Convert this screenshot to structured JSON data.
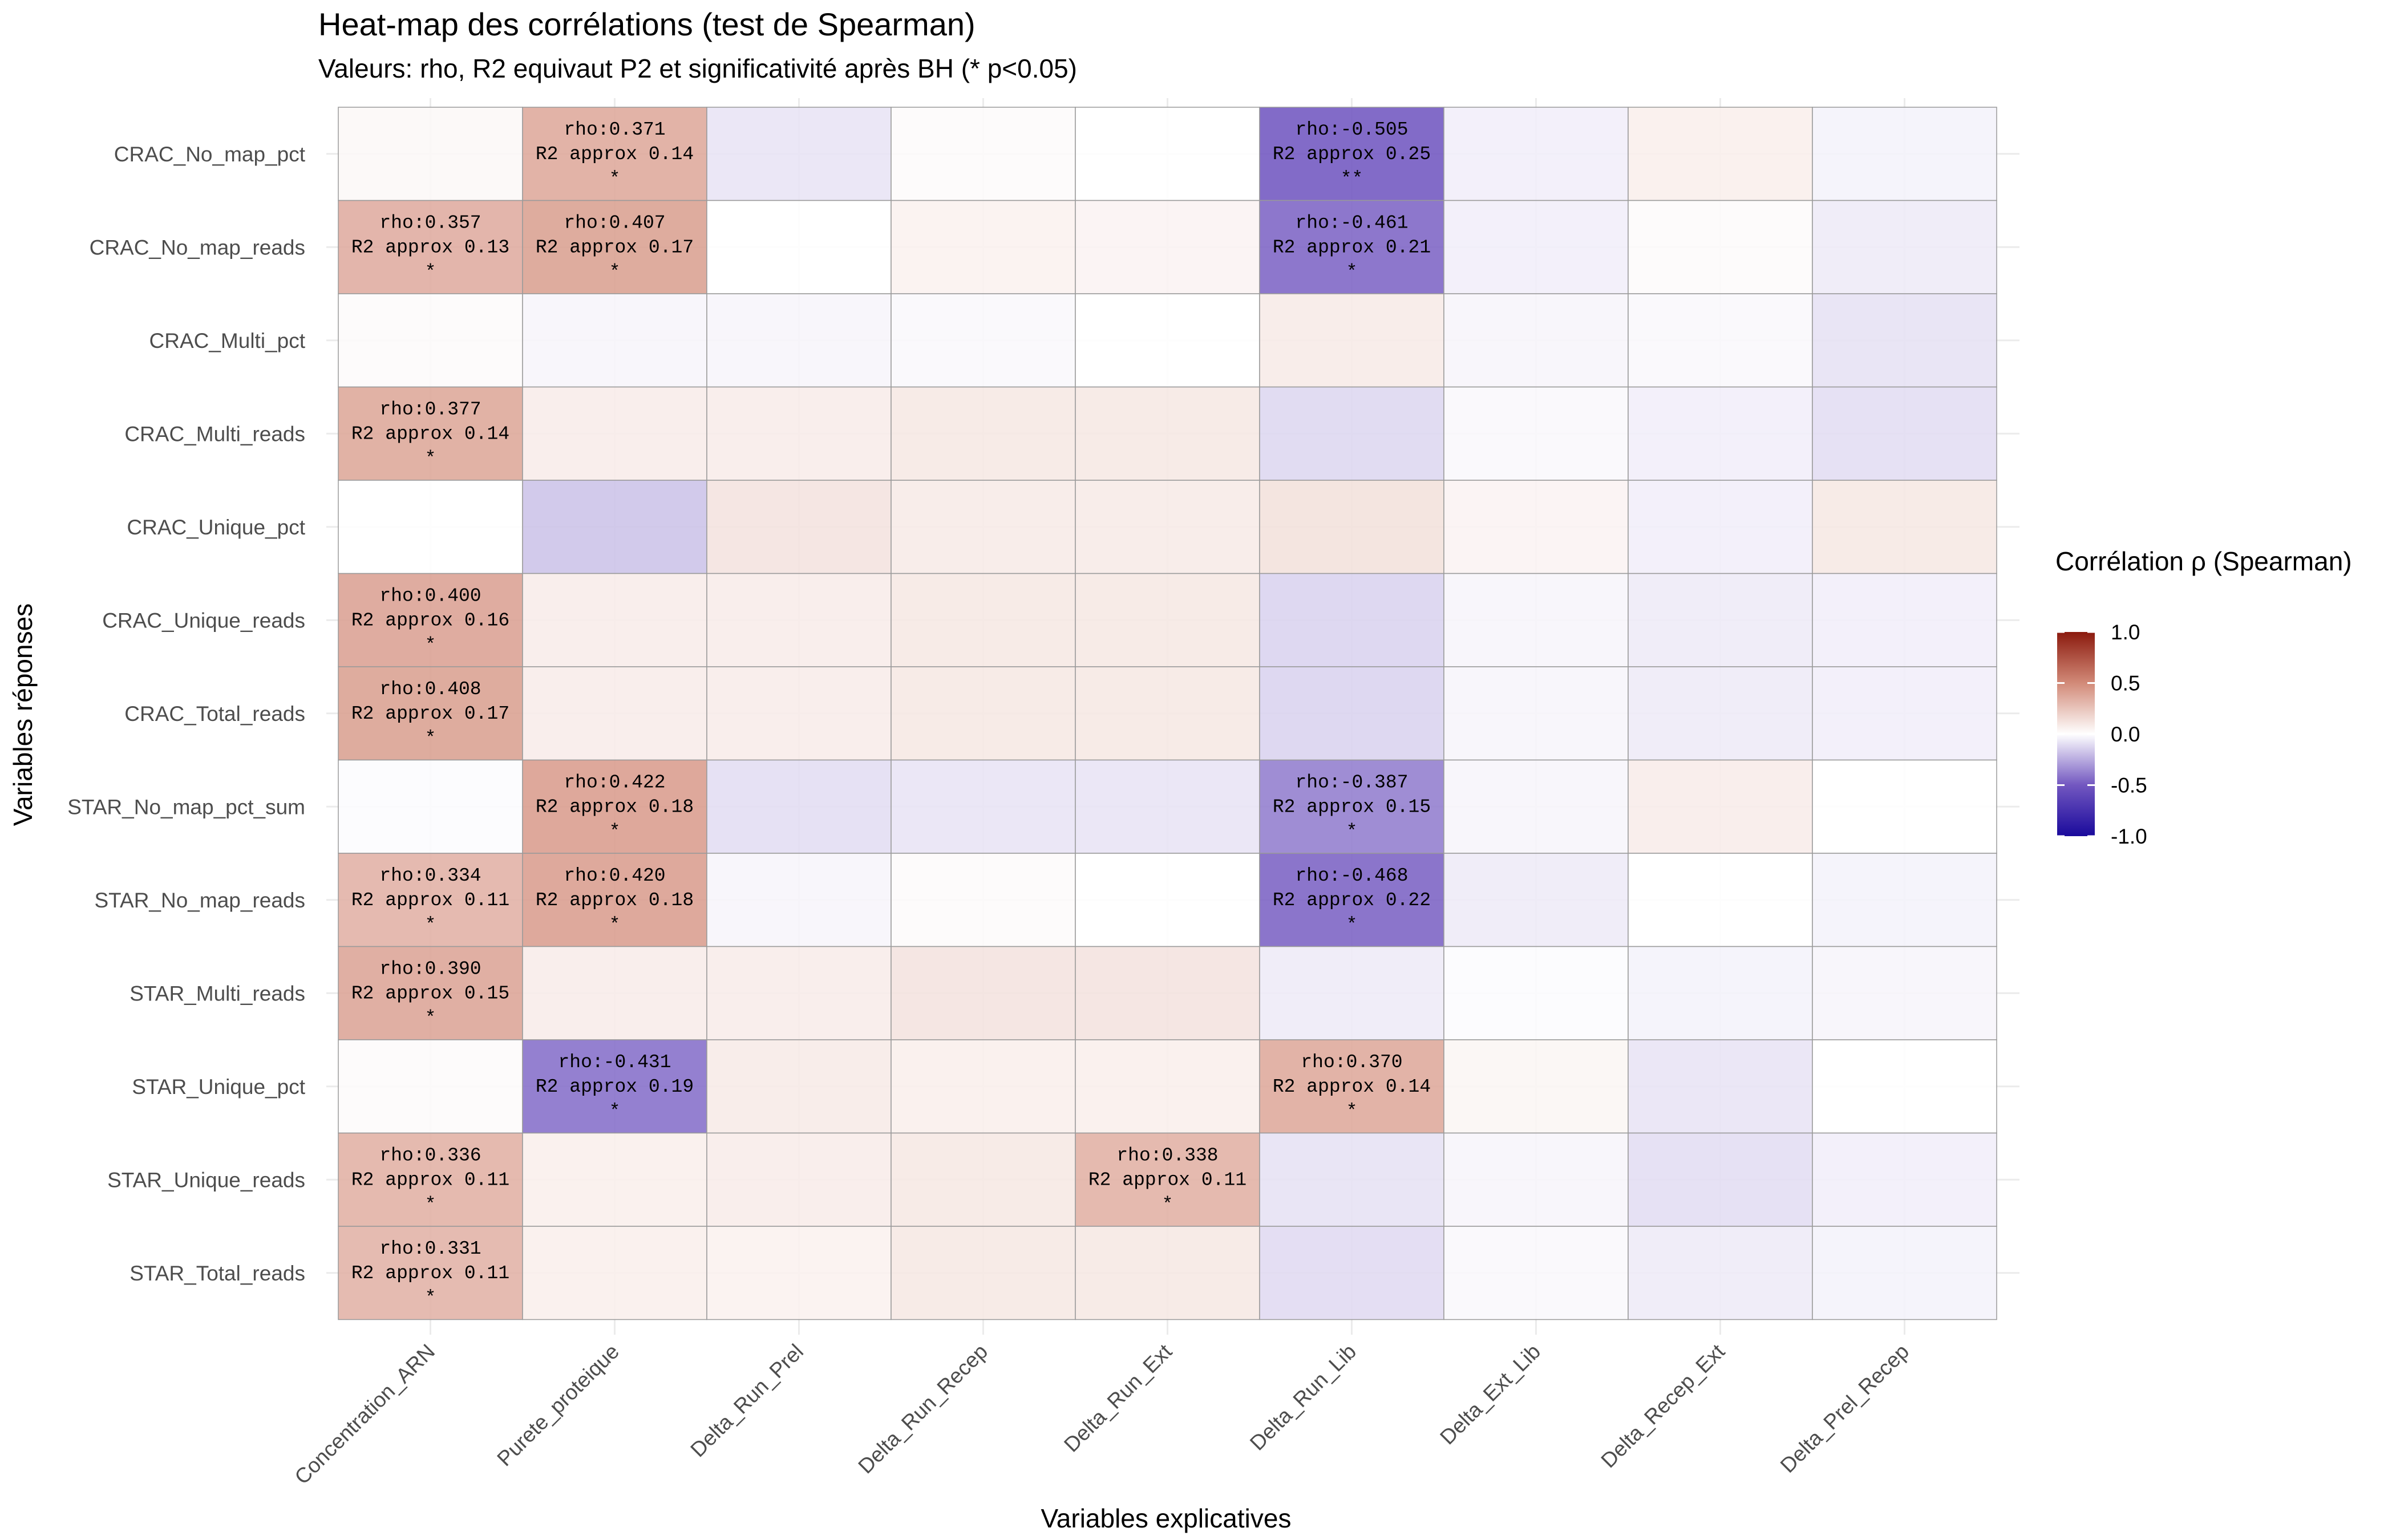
{
  "chart_data": {
    "type": "heatmap",
    "title": "Heat-map des corrélations (test de Spearman)",
    "subtitle": "Valeurs: rho, R2 equivaut P2 et significativité après BH (* p<0.05)",
    "xlabel": "Variables explicatives",
    "ylabel": "Variables réponses",
    "x_categories": [
      "Concentration_ARN",
      "Purete_proteique",
      "Delta_Run_Prel",
      "Delta_Run_Recep",
      "Delta_Run_Ext",
      "Delta_Run_Lib",
      "Delta_Ext_Lib",
      "Delta_Recep_Ext",
      "Delta_Prel_Recep"
    ],
    "y_categories": [
      "CRAC_No_map_pct",
      "CRAC_No_map_reads",
      "CRAC_Multi_pct",
      "CRAC_Multi_reads",
      "CRAC_Unique_pct",
      "CRAC_Unique_reads",
      "CRAC_Total_reads",
      "STAR_No_map_pct_sum",
      "STAR_No_map_reads",
      "STAR_Multi_reads",
      "STAR_Unique_pct",
      "STAR_Unique_reads",
      "STAR_Total_reads"
    ],
    "values": [
      [
        0.03,
        0.371,
        -0.08,
        0.02,
        0.0,
        -0.505,
        -0.05,
        0.07,
        -0.04
      ],
      [
        0.357,
        0.407,
        0.0,
        0.06,
        0.05,
        -0.461,
        -0.05,
        0.02,
        -0.06
      ],
      [
        0.02,
        -0.03,
        -0.03,
        -0.02,
        0.0,
        0.09,
        -0.03,
        -0.02,
        -0.09
      ],
      [
        0.377,
        0.08,
        0.08,
        0.1,
        0.1,
        -0.12,
        -0.02,
        -0.05,
        -0.1
      ],
      [
        0.0,
        -0.18,
        0.12,
        0.09,
        0.09,
        0.13,
        0.05,
        -0.05,
        0.1
      ],
      [
        0.4,
        0.08,
        0.08,
        0.1,
        0.1,
        -0.13,
        -0.03,
        -0.06,
        -0.05
      ],
      [
        0.408,
        0.08,
        0.08,
        0.1,
        0.1,
        -0.13,
        -0.03,
        -0.06,
        -0.05
      ],
      [
        -0.01,
        0.422,
        -0.1,
        -0.08,
        -0.08,
        -0.387,
        -0.03,
        0.08,
        0.0
      ],
      [
        0.334,
        0.42,
        -0.03,
        0.02,
        0.0,
        -0.468,
        -0.06,
        0.0,
        -0.04
      ],
      [
        0.39,
        0.08,
        0.08,
        0.12,
        0.12,
        -0.06,
        -0.01,
        -0.04,
        -0.03
      ],
      [
        0.02,
        -0.431,
        0.09,
        0.07,
        0.07,
        0.37,
        0.04,
        -0.08,
        0.0
      ],
      [
        0.336,
        0.07,
        0.08,
        0.1,
        0.338,
        -0.09,
        -0.03,
        -0.1,
        -0.05
      ],
      [
        0.331,
        0.07,
        0.06,
        0.1,
        0.1,
        -0.11,
        -0.02,
        -0.06,
        -0.04
      ]
    ],
    "cell_labels": [
      [
        "",
        "rho:0.371\nR2 approx 0.14\n*",
        "",
        "",
        "",
        "rho:-0.505\nR2 approx 0.25\n**",
        "",
        "",
        ""
      ],
      [
        "rho:0.357\nR2 approx 0.13\n*",
        "rho:0.407\nR2 approx 0.17\n*",
        "",
        "",
        "",
        "rho:-0.461\nR2 approx 0.21\n*",
        "",
        "",
        ""
      ],
      [
        "",
        "",
        "",
        "",
        "",
        "",
        "",
        "",
        ""
      ],
      [
        "rho:0.377\nR2 approx 0.14\n*",
        "",
        "",
        "",
        "",
        "",
        "",
        "",
        ""
      ],
      [
        "",
        "",
        "",
        "",
        "",
        "",
        "",
        "",
        ""
      ],
      [
        "rho:0.400\nR2 approx 0.16\n*",
        "",
        "",
        "",
        "",
        "",
        "",
        "",
        ""
      ],
      [
        "rho:0.408\nR2 approx 0.17\n*",
        "",
        "",
        "",
        "",
        "",
        "",
        "",
        ""
      ],
      [
        "",
        "rho:0.422\nR2 approx 0.18\n*",
        "",
        "",
        "",
        "rho:-0.387\nR2 approx 0.15\n*",
        "",
        "",
        ""
      ],
      [
        "rho:0.334\nR2 approx 0.11\n*",
        "rho:0.420\nR2 approx 0.18\n*",
        "",
        "",
        "",
        "rho:-0.468\nR2 approx 0.22\n*",
        "",
        "",
        ""
      ],
      [
        "rho:0.390\nR2 approx 0.15\n*",
        "",
        "",
        "",
        "",
        "",
        "",
        "",
        ""
      ],
      [
        "",
        "rho:-0.431\nR2 approx 0.19\n*",
        "",
        "",
        "",
        "rho:0.370\nR2 approx 0.14\n*",
        "",
        "",
        ""
      ],
      [
        "rho:0.336\nR2 approx 0.11\n*",
        "",
        "",
        "",
        "rho:0.338\nR2 approx 0.11\n*",
        "",
        "",
        "",
        ""
      ],
      [
        "rho:0.331\nR2 approx 0.11\n*",
        "",
        "",
        "",
        "",
        "",
        "",
        "",
        ""
      ]
    ],
    "color_scale": {
      "low": "#1a0a9c",
      "mid": "#ffffff",
      "high": "#8b1a0e",
      "domain": [
        -1,
        1
      ],
      "mid_pos": "#d28a78",
      "mid_neg": "#7257c0"
    },
    "legend": {
      "title": "Corrélation ρ (Spearman)",
      "ticks": [
        "1.0",
        "0.5",
        "0.0",
        "-0.5",
        "-1.0"
      ],
      "tick_values": [
        1.0,
        0.5,
        0.0,
        -0.5,
        -1.0
      ],
      "position": "right"
    },
    "grid": true
  }
}
